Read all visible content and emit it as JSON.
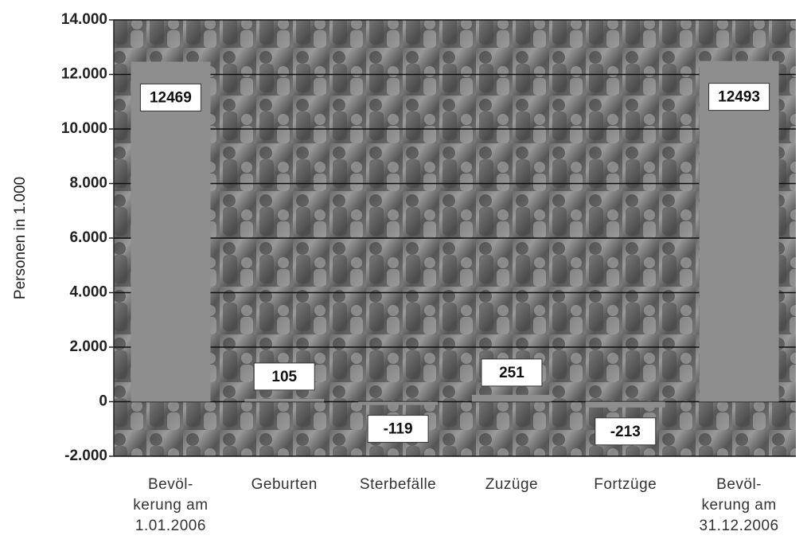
{
  "chart_data": {
    "type": "bar",
    "y_label": "Personen in 1.000",
    "categories": [
      "Bevöl-\nkerung am\n1.01.2006",
      "Geburten",
      "Sterbefälle",
      "Zuzüge",
      "Fortzüge",
      "Bevöl-\nkerung am\n31.12.2006"
    ],
    "values": [
      12469,
      105,
      -119,
      251,
      -213,
      12493
    ],
    "color": "#8e8e8e",
    "ylim": [
      -2000,
      14000
    ],
    "yticks": [
      {
        "value": -2000,
        "label": "-2.000"
      },
      0,
      {
        "value": 2000,
        "label": "2.000"
      },
      {
        "value": 4000,
        "label": "4.000"
      },
      {
        "value": 6000,
        "label": "6.000"
      },
      {
        "value": 8000,
        "label": "8.000"
      },
      {
        "value": 10000,
        "label": "10.000"
      },
      {
        "value": 12000,
        "label": "12.000"
      },
      {
        "value": 14000,
        "label": "14.000"
      }
    ],
    "grid": true
  }
}
